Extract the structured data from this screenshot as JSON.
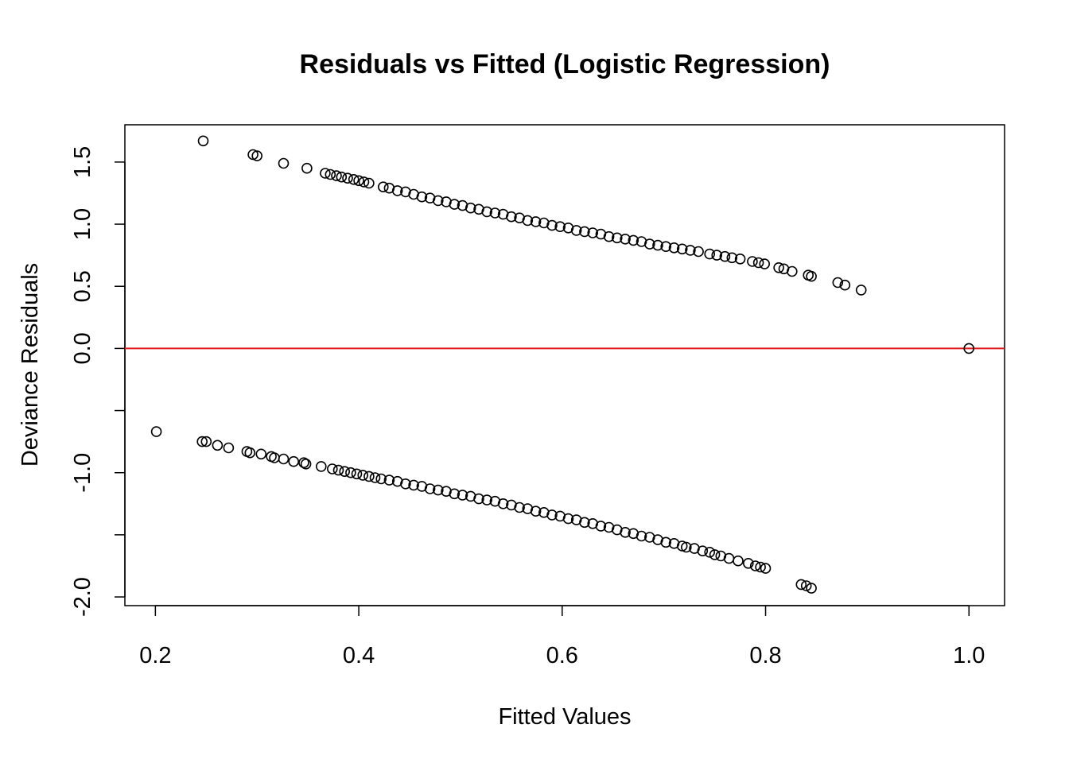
{
  "chart_data": {
    "type": "scatter",
    "title": "Residuals vs Fitted (Logistic Regression)",
    "xlabel": "Fitted Values",
    "ylabel": "Deviance Residuals",
    "xlim": [
      0.17,
      1.035
    ],
    "ylim": [
      -2.07,
      1.8
    ],
    "x_ticks": [
      0.2,
      0.4,
      0.6,
      0.8,
      1.0
    ],
    "x_tick_labels": [
      "0.2",
      "0.4",
      "0.6",
      "0.8",
      "1.0"
    ],
    "y_ticks": [
      -2.0,
      -1.5,
      -1.0,
      -0.5,
      0.0,
      0.5,
      1.0,
      1.5
    ],
    "y_tick_labels": [
      "-2.0",
      "",
      "-1.0",
      "",
      "0.0",
      "0.5",
      "1.0",
      "1.5"
    ],
    "grid": false,
    "marker": "open-circle",
    "reference_line": {
      "y": 0,
      "color": "#e31a1c"
    },
    "series": [
      {
        "x": [
          0.247,
          0.296,
          0.3,
          0.326,
          0.349,
          0.367,
          0.372,
          0.378,
          0.383,
          0.389,
          0.395,
          0.4,
          0.405,
          0.41,
          0.424,
          0.43,
          0.438,
          0.446,
          0.454,
          0.462,
          0.47,
          0.478,
          0.486,
          0.494,
          0.502,
          0.51,
          0.518,
          0.526,
          0.534,
          0.542,
          0.55,
          0.558,
          0.566,
          0.574,
          0.582,
          0.59,
          0.598,
          0.606,
          0.614,
          0.622,
          0.63,
          0.638,
          0.646,
          0.654,
          0.662,
          0.67,
          0.678,
          0.686,
          0.694,
          0.702,
          0.71,
          0.718,
          0.726,
          0.734,
          0.745,
          0.752,
          0.76,
          0.767,
          0.775,
          0.787,
          0.793,
          0.799,
          0.813,
          0.818,
          0.826,
          0.842,
          0.845,
          0.871,
          0.878,
          0.894
        ],
        "y": [
          1.67,
          1.56,
          1.55,
          1.49,
          1.45,
          1.41,
          1.4,
          1.39,
          1.38,
          1.37,
          1.36,
          1.35,
          1.34,
          1.33,
          1.3,
          1.29,
          1.27,
          1.26,
          1.24,
          1.22,
          1.21,
          1.19,
          1.18,
          1.16,
          1.15,
          1.13,
          1.12,
          1.1,
          1.09,
          1.08,
          1.06,
          1.05,
          1.03,
          1.02,
          1.01,
          0.99,
          0.98,
          0.97,
          0.95,
          0.94,
          0.93,
          0.92,
          0.9,
          0.89,
          0.88,
          0.87,
          0.86,
          0.84,
          0.83,
          0.82,
          0.81,
          0.8,
          0.79,
          0.78,
          0.76,
          0.75,
          0.74,
          0.73,
          0.72,
          0.7,
          0.69,
          0.68,
          0.65,
          0.64,
          0.62,
          0.59,
          0.58,
          0.53,
          0.51,
          0.47
        ]
      },
      {
        "x": [
          0.201,
          0.246,
          0.25,
          0.261,
          0.272,
          0.29,
          0.293,
          0.304,
          0.314,
          0.317,
          0.326,
          0.336,
          0.346,
          0.348,
          0.363,
          0.374,
          0.38,
          0.386,
          0.392,
          0.398,
          0.404,
          0.41,
          0.416,
          0.422,
          0.43,
          0.438,
          0.446,
          0.454,
          0.462,
          0.47,
          0.478,
          0.486,
          0.494,
          0.502,
          0.51,
          0.518,
          0.526,
          0.534,
          0.542,
          0.55,
          0.558,
          0.566,
          0.574,
          0.582,
          0.59,
          0.598,
          0.606,
          0.614,
          0.622,
          0.63,
          0.638,
          0.646,
          0.654,
          0.662,
          0.67,
          0.678,
          0.686,
          0.694,
          0.702,
          0.71,
          0.718,
          0.722,
          0.73,
          0.738,
          0.745,
          0.75,
          0.756,
          0.764,
          0.773,
          0.783,
          0.79,
          0.795,
          0.8,
          0.835,
          0.84,
          0.845,
          1.0
        ],
        "y": [
          -0.67,
          -0.75,
          -0.75,
          -0.78,
          -0.8,
          -0.83,
          -0.84,
          -0.85,
          -0.87,
          -0.88,
          -0.89,
          -0.91,
          -0.92,
          -0.93,
          -0.95,
          -0.97,
          -0.98,
          -0.99,
          -1.0,
          -1.01,
          -1.02,
          -1.03,
          -1.04,
          -1.05,
          -1.06,
          -1.07,
          -1.09,
          -1.1,
          -1.11,
          -1.13,
          -1.14,
          -1.15,
          -1.17,
          -1.18,
          -1.19,
          -1.21,
          -1.22,
          -1.23,
          -1.25,
          -1.26,
          -1.28,
          -1.29,
          -1.31,
          -1.32,
          -1.34,
          -1.35,
          -1.37,
          -1.38,
          -1.4,
          -1.41,
          -1.43,
          -1.44,
          -1.46,
          -1.48,
          -1.49,
          -1.51,
          -1.52,
          -1.54,
          -1.56,
          -1.57,
          -1.59,
          -1.6,
          -1.61,
          -1.63,
          -1.64,
          -1.66,
          -1.67,
          -1.69,
          -1.71,
          -1.73,
          -1.75,
          -1.76,
          -1.77,
          -1.9,
          -1.91,
          -1.93,
          0.0
        ]
      }
    ]
  }
}
